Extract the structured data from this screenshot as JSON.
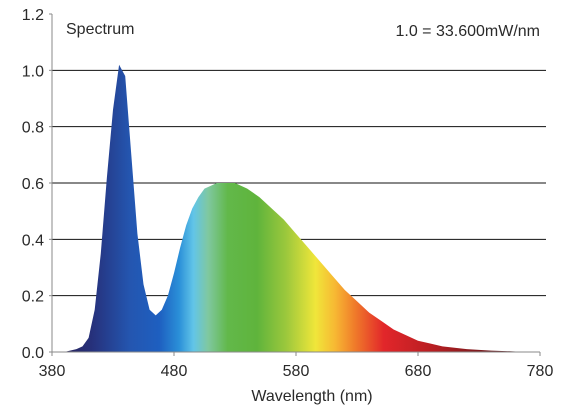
{
  "chart_data": {
    "type": "area",
    "title": "Spectrum",
    "annotation": "1.0 = 33.600mW/nm",
    "xlabel": "Wavelength (nm)",
    "ylabel": "",
    "xlim": [
      380,
      780
    ],
    "ylim": [
      0,
      1.2
    ],
    "grid": true,
    "x_ticks": [
      "380",
      "480",
      "580",
      "680",
      "780"
    ],
    "y_ticks": [
      "0.0",
      "0.2",
      "0.4",
      "0.6",
      "0.8",
      "1.0",
      "1.2"
    ],
    "series": [
      {
        "x": [
          380,
          390,
          400,
          405,
          410,
          415,
          420,
          425,
          430,
          435,
          440,
          445,
          450,
          455,
          460,
          465,
          470,
          475,
          480,
          485,
          490,
          495,
          500,
          505,
          510,
          515,
          520,
          530,
          540,
          550,
          560,
          570,
          580,
          590,
          600,
          610,
          620,
          630,
          640,
          650,
          660,
          670,
          680,
          690,
          700,
          720,
          740,
          760,
          780
        ],
        "values": [
          0.0,
          0.0,
          0.01,
          0.02,
          0.05,
          0.15,
          0.35,
          0.62,
          0.86,
          1.02,
          0.98,
          0.7,
          0.42,
          0.24,
          0.15,
          0.13,
          0.15,
          0.2,
          0.28,
          0.37,
          0.45,
          0.51,
          0.55,
          0.58,
          0.59,
          0.6,
          0.6,
          0.6,
          0.58,
          0.55,
          0.51,
          0.47,
          0.42,
          0.37,
          0.32,
          0.27,
          0.22,
          0.18,
          0.14,
          0.11,
          0.08,
          0.06,
          0.04,
          0.03,
          0.02,
          0.01,
          0.005,
          0.002,
          0.0
        ]
      }
    ]
  }
}
